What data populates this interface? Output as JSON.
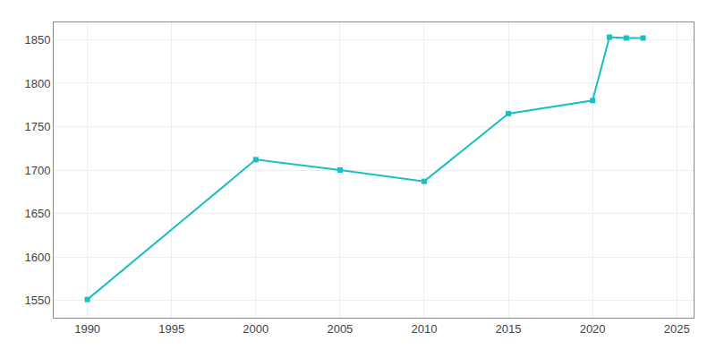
{
  "chart_data": {
    "type": "line",
    "x": [
      1990,
      2000,
      2005,
      2010,
      2015,
      2020,
      2021,
      2022,
      2023
    ],
    "values": [
      1551,
      1712,
      1700,
      1687,
      1765,
      1780,
      1853,
      1852,
      1852
    ],
    "color": "#1ABFBF",
    "marker": "square",
    "xlim": [
      1988,
      2026
    ],
    "ylim": [
      1530,
      1870
    ],
    "xticks": [
      1990,
      1995,
      2000,
      2005,
      2010,
      2015,
      2020,
      2025
    ],
    "yticks": [
      1550,
      1600,
      1650,
      1700,
      1750,
      1800,
      1850
    ],
    "grid": true
  }
}
